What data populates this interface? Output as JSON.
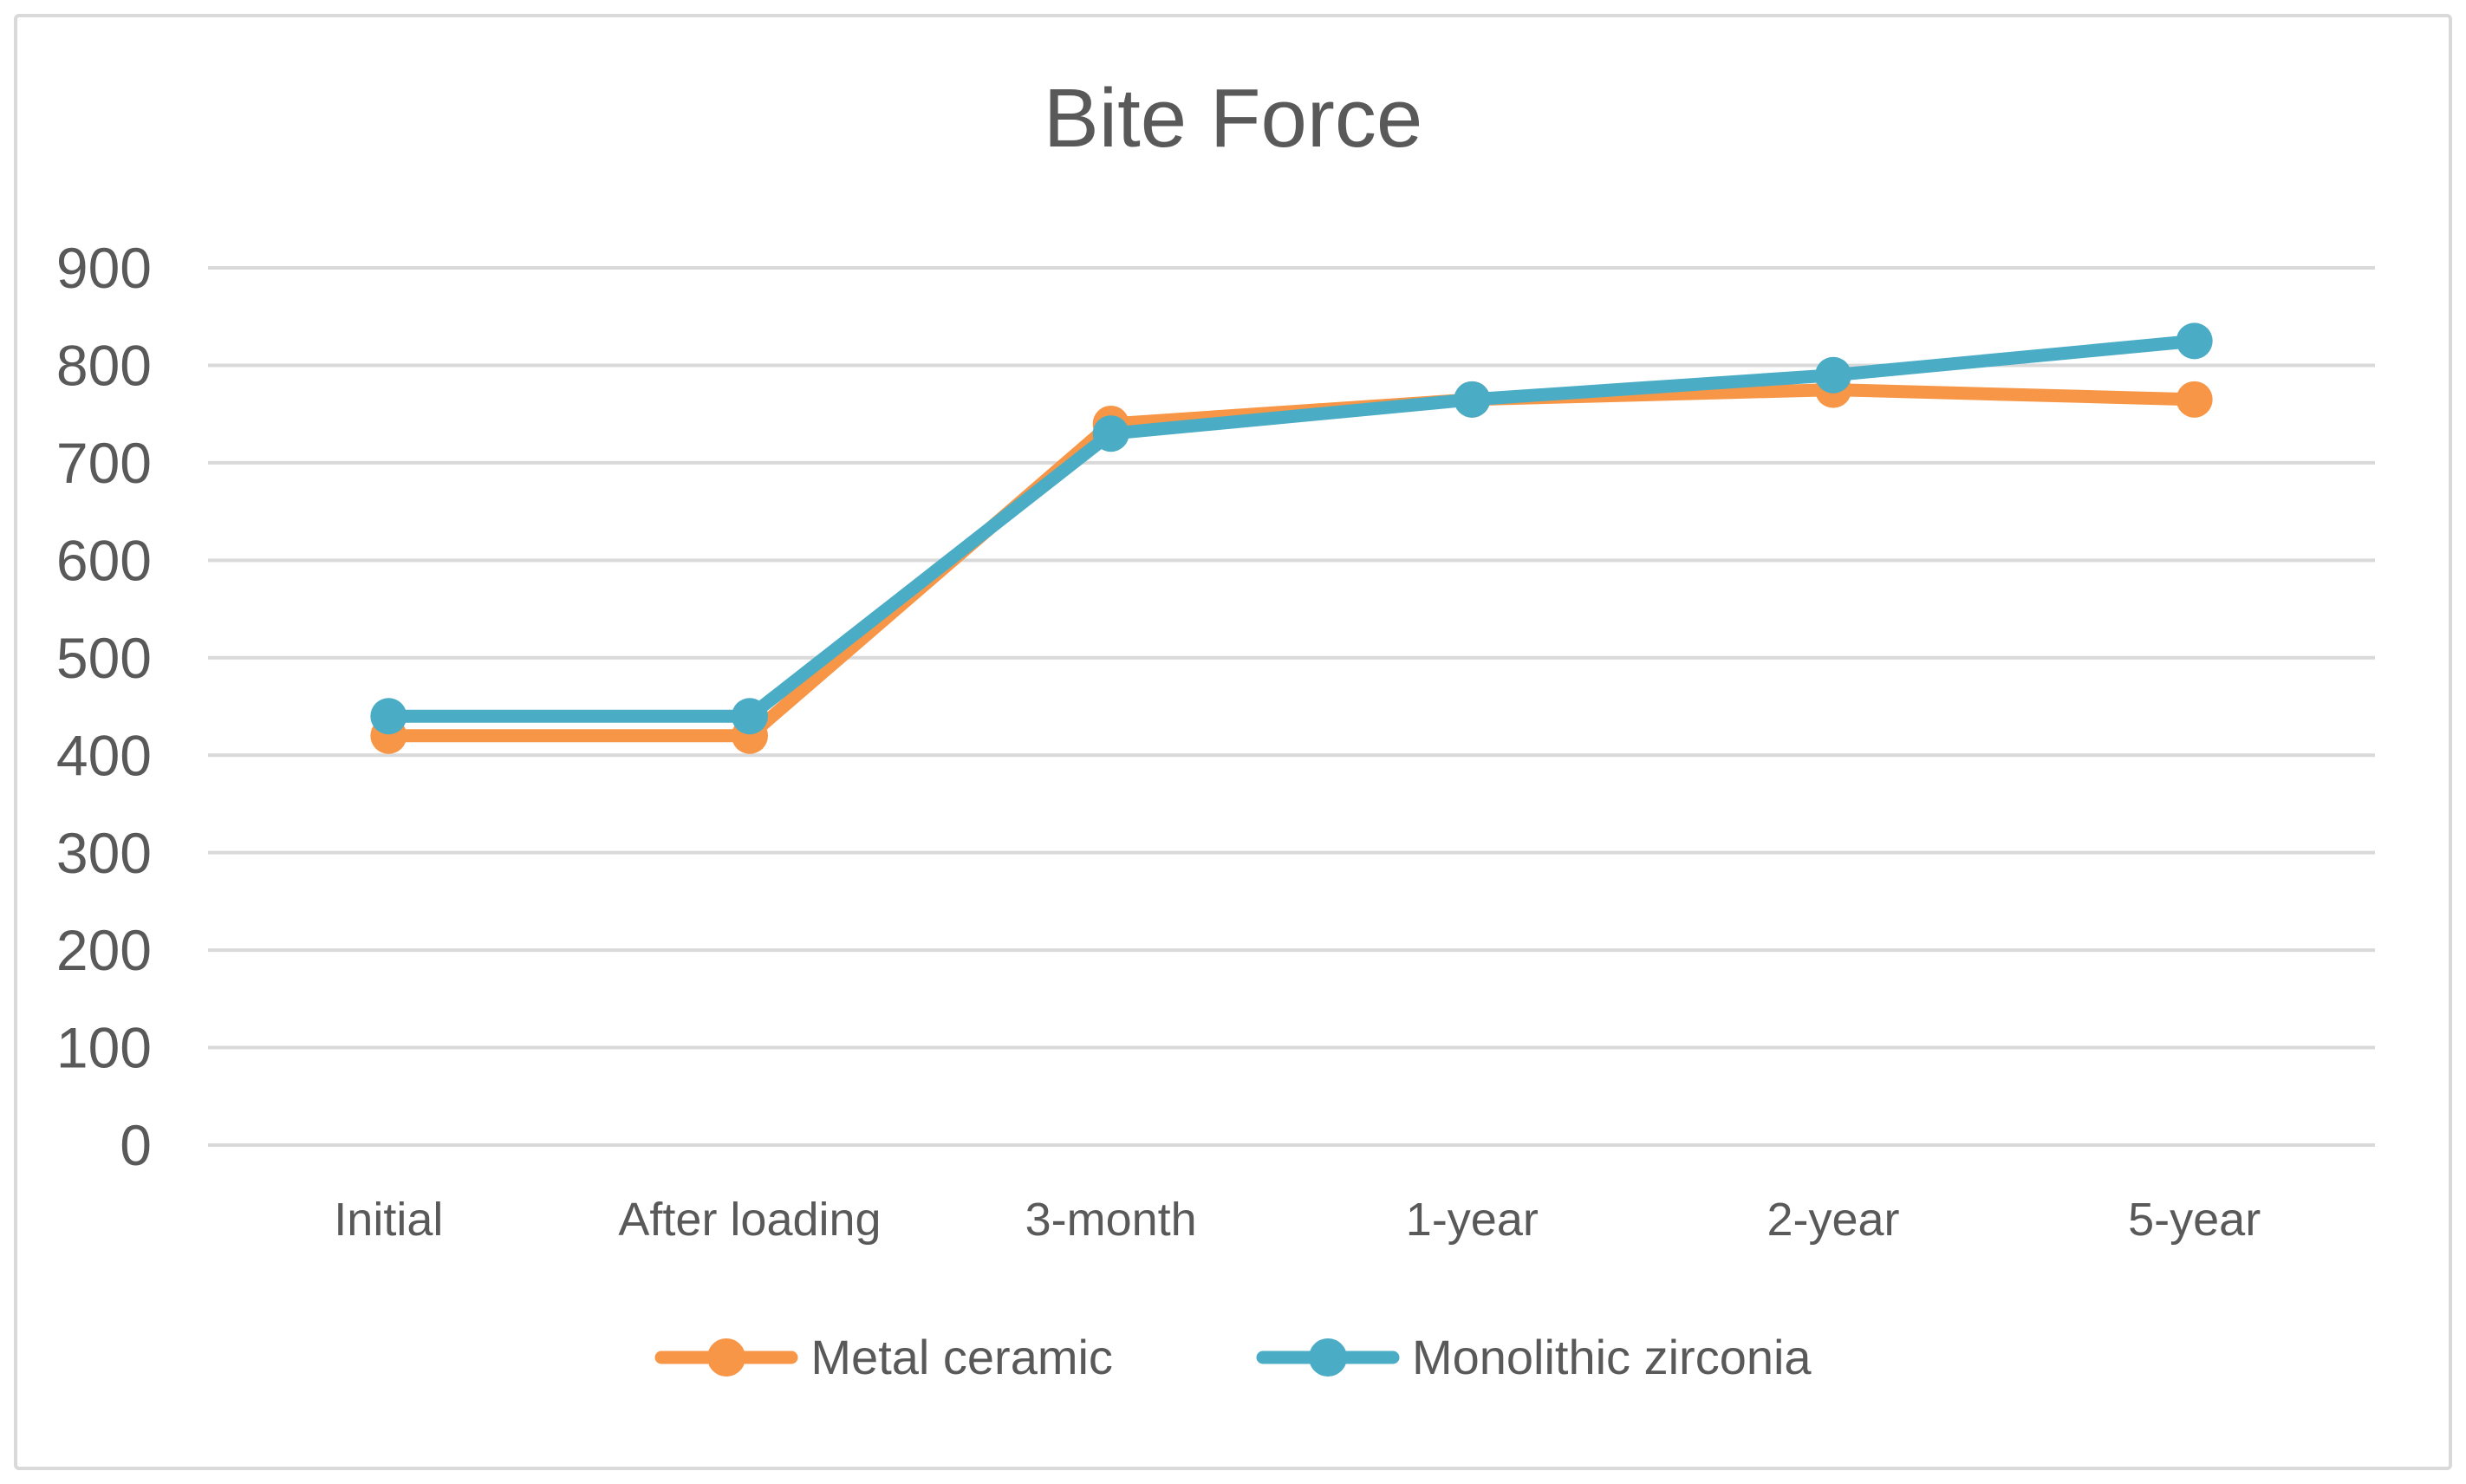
{
  "chart_data": {
    "type": "line",
    "title": "Bite Force",
    "categories": [
      "Initial",
      "After loading",
      "3-month",
      "1-year",
      "2-year",
      "5-year"
    ],
    "series": [
      {
        "name": "Metal ceramic",
        "color": "#F79646",
        "values": [
          420,
          420,
          740,
          765,
          775,
          765
        ]
      },
      {
        "name": "Monolithic zirconia",
        "color": "#4BACC6",
        "values": [
          440,
          440,
          730,
          765,
          790,
          825
        ]
      }
    ],
    "xlabel": "",
    "ylabel": "",
    "ylim": [
      0,
      900
    ],
    "ytick_step": 100,
    "yticks": [
      "0",
      "100",
      "200",
      "300",
      "400",
      "500",
      "600",
      "700",
      "800",
      "900"
    ],
    "grid": true,
    "legend_position": "bottom",
    "marker": "circle",
    "colors": {
      "text": "#595959",
      "gridline": "#D9D9D9",
      "frame_border": "#D9D9D9",
      "background": "#FFFFFF"
    }
  }
}
